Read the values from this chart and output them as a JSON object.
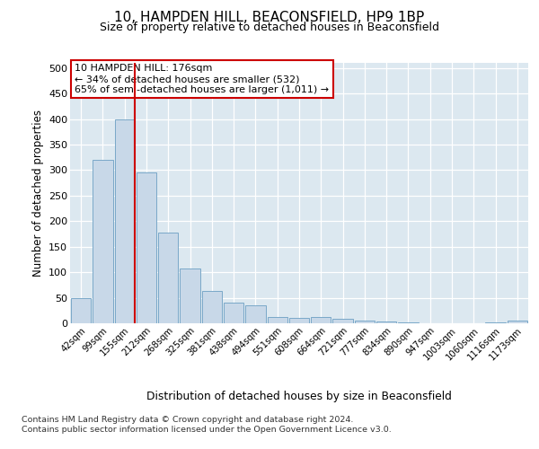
{
  "title1": "10, HAMPDEN HILL, BEACONSFIELD, HP9 1BP",
  "title2": "Size of property relative to detached houses in Beaconsfield",
  "xlabel": "Distribution of detached houses by size in Beaconsfield",
  "ylabel": "Number of detached properties",
  "bar_labels": [
    "42sqm",
    "99sqm",
    "155sqm",
    "212sqm",
    "268sqm",
    "325sqm",
    "381sqm",
    "438sqm",
    "494sqm",
    "551sqm",
    "608sqm",
    "664sqm",
    "721sqm",
    "777sqm",
    "834sqm",
    "890sqm",
    "947sqm",
    "1003sqm",
    "1060sqm",
    "1116sqm",
    "1173sqm"
  ],
  "bar_heights": [
    50,
    320,
    400,
    295,
    178,
    107,
    63,
    40,
    35,
    12,
    11,
    13,
    9,
    5,
    3,
    1,
    0,
    0,
    0,
    1,
    5
  ],
  "bar_color": "#c8d8e8",
  "bar_edge_color": "#7aa8c8",
  "vline_color": "#cc0000",
  "annotation_text": "10 HAMPDEN HILL: 176sqm\n← 34% of detached houses are smaller (532)\n65% of semi-detached houses are larger (1,011) →",
  "annotation_box_color": "#ffffff",
  "annotation_box_edge": "#cc0000",
  "ylim": [
    0,
    510
  ],
  "yticks": [
    0,
    50,
    100,
    150,
    200,
    250,
    300,
    350,
    400,
    450,
    500
  ],
  "background_color": "#dce8f0",
  "footer1": "Contains HM Land Registry data © Crown copyright and database right 2024.",
  "footer2": "Contains public sector information licensed under the Open Government Licence v3.0."
}
